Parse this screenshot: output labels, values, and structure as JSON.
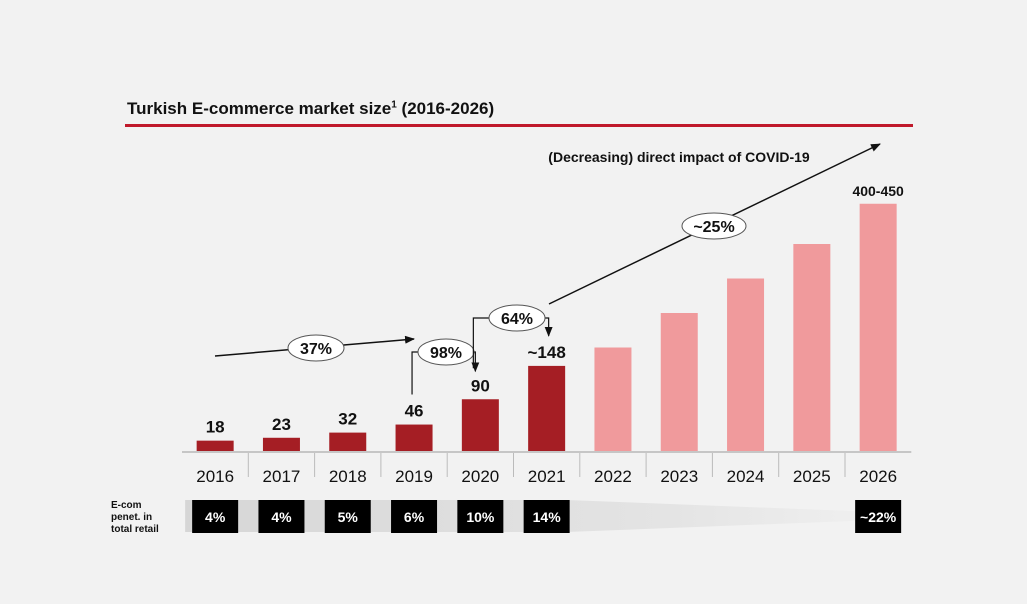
{
  "title": "Turkish E-commerce market size",
  "title_sup": "1",
  "title_suffix": " (2016-2026)",
  "covid_note": "(Decreasing) direct impact of COVID-19",
  "chart_data": {
    "type": "bar",
    "categories": [
      "2016",
      "2017",
      "2018",
      "2019",
      "2020",
      "2021",
      "2022",
      "2023",
      "2024",
      "2025",
      "2026"
    ],
    "values": [
      18,
      23,
      32,
      46,
      90,
      148,
      180,
      240,
      300,
      360,
      430
    ],
    "value_labels": [
      "18",
      "23",
      "32",
      "46",
      "90",
      "~148",
      "",
      "",
      "",
      "",
      "400-450"
    ],
    "forecast_from_index": 6,
    "colors": {
      "actual": "#a51e24",
      "forecast": "#f09a9c"
    },
    "growth_annotations": [
      {
        "label": "37%",
        "from": "2016",
        "to": "2019"
      },
      {
        "label": "98%",
        "from": "2019",
        "to": "2020"
      },
      {
        "label": "64%",
        "from": "2020",
        "to": "2021"
      },
      {
        "label": "~25%",
        "from": "2021",
        "to": "2026"
      }
    ],
    "penetration": {
      "label_lines": [
        "E-com",
        "penet. in",
        "total retail"
      ],
      "values": [
        "4%",
        "4%",
        "5%",
        "6%",
        "10%",
        "14%",
        "",
        "",
        "",
        "",
        "~22%"
      ]
    }
  }
}
